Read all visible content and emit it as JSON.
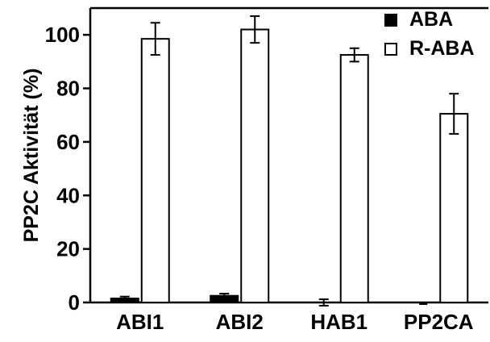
{
  "chart_data": {
    "type": "bar",
    "title": "",
    "xlabel": "",
    "ylabel": "PP2C Aktivität (%)",
    "categories": [
      "ABI1",
      "ABI2",
      "HAB1",
      "PP2CA"
    ],
    "ylim": [
      0,
      110
    ],
    "yticks": [
      0,
      20,
      40,
      60,
      80,
      100
    ],
    "grid": false,
    "legend_position": "top-right",
    "series": [
      {
        "name": "ABA",
        "fill": "#000000",
        "values": [
          1.5,
          2.5,
          0,
          -0.5
        ],
        "errors": [
          0.7,
          0.8,
          1.2,
          0
        ]
      },
      {
        "name": "R-ABA",
        "fill": "#ffffff",
        "values": [
          98.5,
          102,
          92.5,
          70.5
        ],
        "errors": [
          6,
          5,
          2.5,
          7.5
        ]
      }
    ]
  }
}
